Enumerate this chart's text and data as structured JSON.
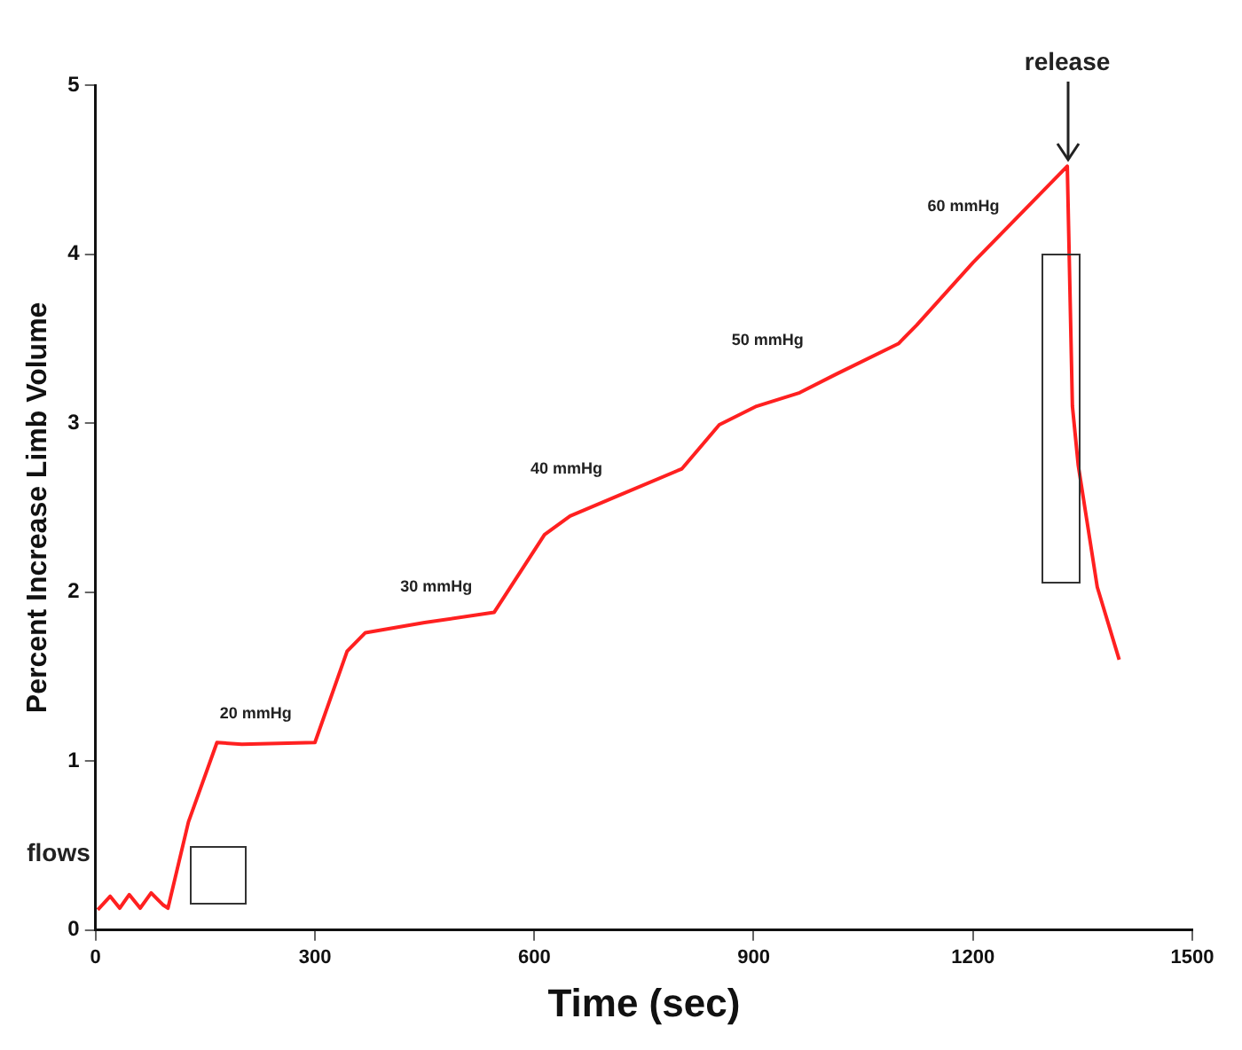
{
  "chart_data": {
    "type": "line",
    "xlabel": "Time (sec)",
    "ylabel": "Percent Increase Limb Volume",
    "xlim": [
      0,
      1500
    ],
    "xticks": [
      0,
      300,
      600,
      900,
      1200,
      1500
    ],
    "ylim": [
      0,
      5
    ],
    "yticks": [
      0,
      1,
      2,
      3,
      4,
      5
    ],
    "grid": false,
    "legend": false,
    "marker": "none",
    "line_style": "solid",
    "series": [
      {
        "color": "#ff2020",
        "x": [
          3,
          20,
          33,
          46,
          61,
          76,
          92,
          99,
          127,
          166,
          200,
          300,
          344,
          369,
          450,
          545,
          614,
          649,
          720,
          802,
          853,
          904,
          963,
          1013,
          1098,
          1123,
          1200,
          1329,
          1336,
          1344,
          1370,
          1400
        ],
        "values": [
          0.12,
          0.2,
          0.13,
          0.21,
          0.13,
          0.22,
          0.15,
          0.13,
          0.64,
          1.11,
          1.1,
          1.11,
          1.65,
          1.76,
          1.82,
          1.88,
          2.34,
          2.45,
          2.58,
          2.73,
          2.99,
          3.1,
          3.18,
          3.29,
          3.47,
          3.58,
          3.95,
          4.52,
          3.1,
          2.75,
          2.03,
          1.6
        ]
      }
    ],
    "annotations": [
      "flows",
      "20 mmHg",
      "30 mmHg",
      "40 mmHg",
      "50 mmHg",
      "60 mmHg",
      {
        "text": "release",
        "x": 1329,
        "y": 4.52
      }
    ]
  }
}
